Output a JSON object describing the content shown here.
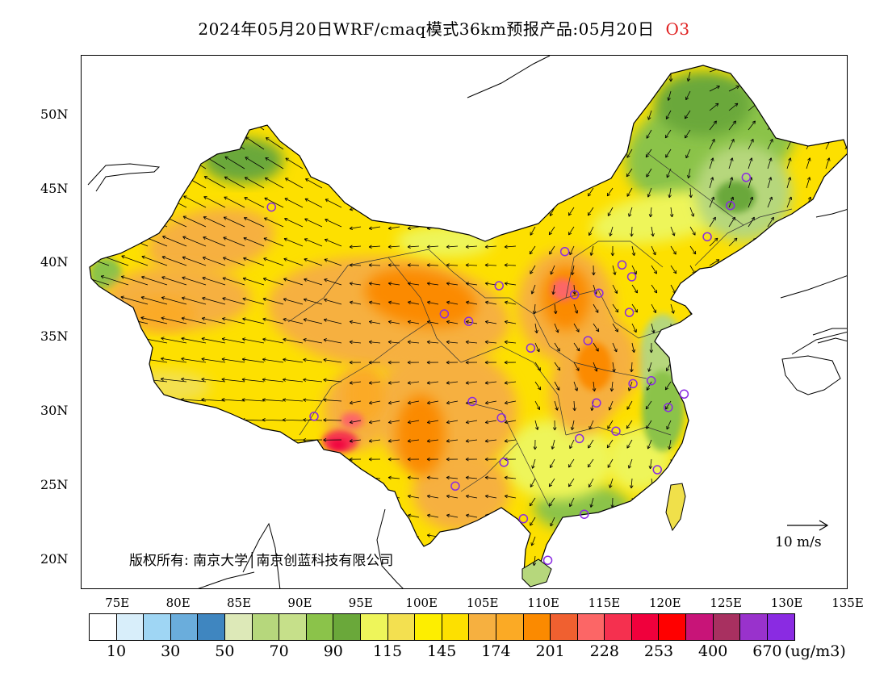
{
  "title": {
    "text": "2024年05月20日WRF/cmaq模式36km预报产品:05月20日",
    "species": "O3"
  },
  "y_axis": {
    "ticks": [
      "50N",
      "45N",
      "40N",
      "35N",
      "30N",
      "25N",
      "20N"
    ]
  },
  "x_axis": {
    "ticks": [
      "75E",
      "80E",
      "85E",
      "90E",
      "95E",
      "100E",
      "105E",
      "110E",
      "115E",
      "120E",
      "125E",
      "130E",
      "135E"
    ]
  },
  "colorbar": {
    "colors": [
      "#ffffff",
      "#d8eefa",
      "#9fd6f4",
      "#6aaddc",
      "#3f86c0",
      "#dde9b8",
      "#b6d77c",
      "#c6e08a",
      "#8bc34a",
      "#6aa83a",
      "#eef55a",
      "#f3e050",
      "#fdee00",
      "#fde000",
      "#f6b040",
      "#fbaa25",
      "#fb8a00",
      "#f06030",
      "#fc6666",
      "#f5304f",
      "#f0003c",
      "#ff0000",
      "#c81478",
      "#a83060",
      "#9932cc",
      "#8a2be2"
    ],
    "labels": [
      "10",
      "30",
      "50",
      "70",
      "90",
      "115",
      "145",
      "174",
      "201",
      "228",
      "253",
      "400",
      "670"
    ],
    "units": "(ug/m3)"
  },
  "map": {
    "copyright": "版权所有: 南京大学│南京创蓝科技有限公司",
    "wind_reference": "10 m/s",
    "lon_range": [
      72,
      135
    ],
    "lat_range": [
      18,
      54
    ],
    "stations": [
      {
        "lon": 87.6,
        "lat": 43.8
      },
      {
        "lon": 101.8,
        "lat": 36.6
      },
      {
        "lon": 103.8,
        "lat": 36.1
      },
      {
        "lon": 106.3,
        "lat": 38.5
      },
      {
        "lon": 111.7,
        "lat": 40.8
      },
      {
        "lon": 112.5,
        "lat": 37.9
      },
      {
        "lon": 114.5,
        "lat": 38.0
      },
      {
        "lon": 116.4,
        "lat": 39.9
      },
      {
        "lon": 117.2,
        "lat": 39.1
      },
      {
        "lon": 117.0,
        "lat": 36.7
      },
      {
        "lon": 113.6,
        "lat": 34.8
      },
      {
        "lon": 108.9,
        "lat": 34.3
      },
      {
        "lon": 117.3,
        "lat": 31.9
      },
      {
        "lon": 118.8,
        "lat": 32.1
      },
      {
        "lon": 121.5,
        "lat": 31.2
      },
      {
        "lon": 120.2,
        "lat": 30.3
      },
      {
        "lon": 114.3,
        "lat": 30.6
      },
      {
        "lon": 112.9,
        "lat": 28.2
      },
      {
        "lon": 115.9,
        "lat": 28.7
      },
      {
        "lon": 119.3,
        "lat": 26.1
      },
      {
        "lon": 113.3,
        "lat": 23.1
      },
      {
        "lon": 108.3,
        "lat": 22.8
      },
      {
        "lon": 110.3,
        "lat": 20.0
      },
      {
        "lon": 106.7,
        "lat": 26.6
      },
      {
        "lon": 102.7,
        "lat": 25.0
      },
      {
        "lon": 104.1,
        "lat": 30.7
      },
      {
        "lon": 106.5,
        "lat": 29.6
      },
      {
        "lon": 91.1,
        "lat": 29.7
      },
      {
        "lon": 126.6,
        "lat": 45.8
      },
      {
        "lon": 125.3,
        "lat": 43.9
      },
      {
        "lon": 123.4,
        "lat": 41.8
      }
    ]
  }
}
